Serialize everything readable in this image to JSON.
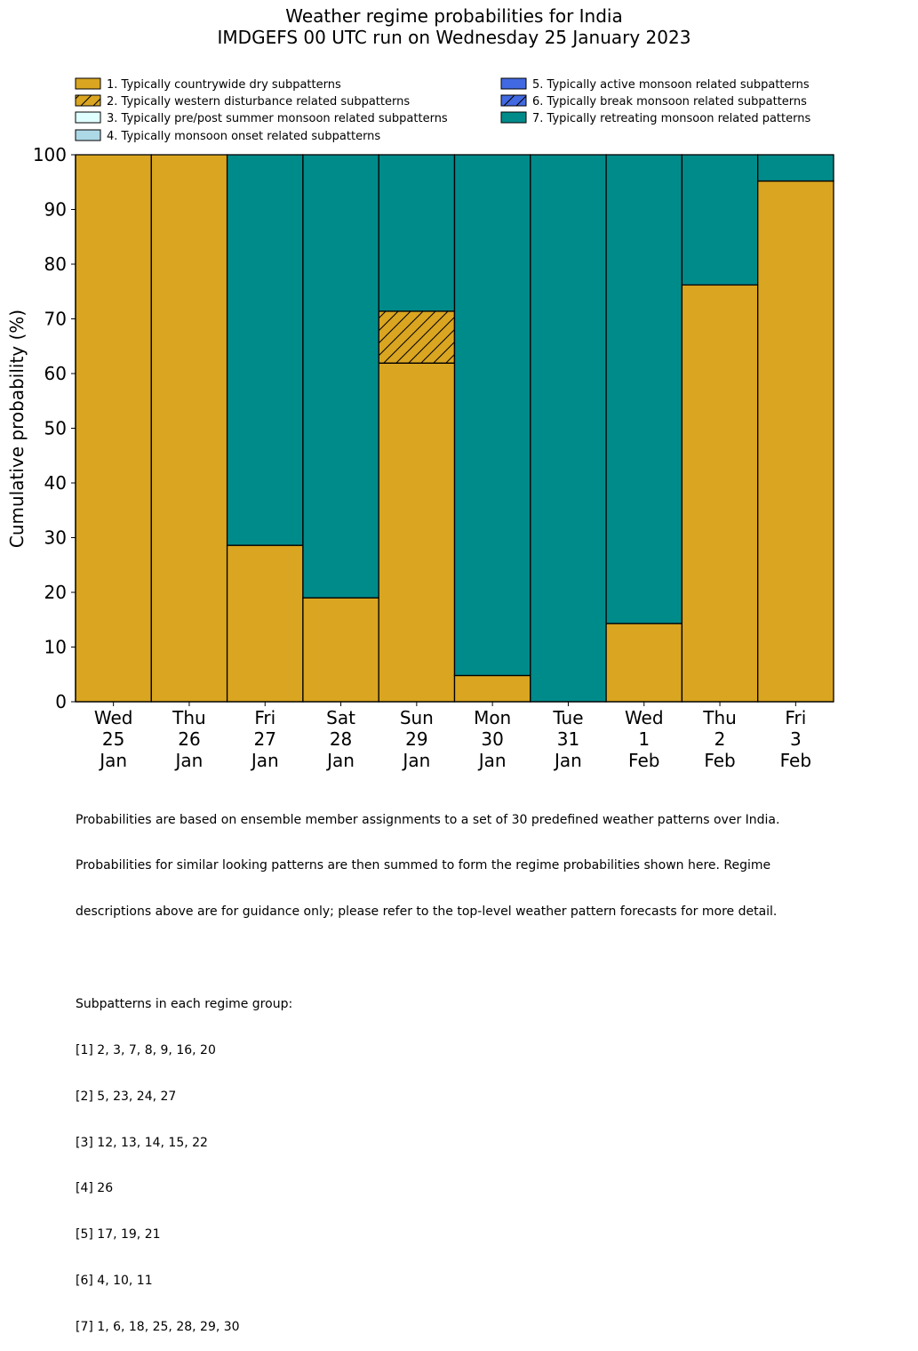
{
  "colors": {
    "dry": "#DAA520",
    "western": "#DAA520",
    "prepost": "#E0FFFF",
    "onset": "#ADD8E6",
    "active": "#4169E1",
    "break": "#4169E1",
    "retreating": "#008B8B"
  },
  "chart_data": {
    "type": "bar",
    "stacked": true,
    "title": "Weather regime probabilities for India",
    "subtitle": "IMDGEFS 00 UTC run on Wednesday 25 January 2023",
    "xlabel": "",
    "ylabel": "Cumulative probability (%)",
    "ylim": [
      0,
      100
    ],
    "yticks": [
      "0",
      "10",
      "20",
      "30",
      "40",
      "50",
      "60",
      "70",
      "80",
      "90",
      "100"
    ],
    "categories": [
      {
        "day": "Wed",
        "date": "25",
        "month": "Jan"
      },
      {
        "day": "Thu",
        "date": "26",
        "month": "Jan"
      },
      {
        "day": "Fri",
        "date": "27",
        "month": "Jan"
      },
      {
        "day": "Sat",
        "date": "28",
        "month": "Jan"
      },
      {
        "day": "Sun",
        "date": "29",
        "month": "Jan"
      },
      {
        "day": "Mon",
        "date": "30",
        "month": "Jan"
      },
      {
        "day": "Tue",
        "date": "31",
        "month": "Jan"
      },
      {
        "day": "Wed",
        "date": "1",
        "month": "Feb"
      },
      {
        "day": "Thu",
        "date": "2",
        "month": "Feb"
      },
      {
        "day": "Fri",
        "date": "3",
        "month": "Feb"
      }
    ],
    "series": [
      {
        "key": "dry",
        "name": "1. Typically countrywide dry subpatterns",
        "hatch": false,
        "values": [
          100,
          100,
          28.6,
          19.0,
          61.9,
          4.8,
          0,
          14.3,
          76.2,
          95.2
        ]
      },
      {
        "key": "western",
        "name": "2. Typically western disturbance related subpatterns",
        "hatch": true,
        "values": [
          0,
          0,
          0,
          0,
          9.5,
          0,
          0,
          0,
          0,
          0
        ]
      },
      {
        "key": "prepost",
        "name": "3. Typically pre/post summer monsoon related subpatterns",
        "hatch": false,
        "values": [
          0,
          0,
          0,
          0,
          0,
          0,
          0,
          0,
          0,
          0
        ]
      },
      {
        "key": "onset",
        "name": "4. Typically monsoon onset related subpatterns",
        "hatch": false,
        "values": [
          0,
          0,
          0,
          0,
          0,
          0,
          0,
          0,
          0,
          0
        ]
      },
      {
        "key": "active",
        "name": "5. Typically active monsoon related subpatterns",
        "hatch": false,
        "values": [
          0,
          0,
          0,
          0,
          0,
          0,
          0,
          0,
          0,
          0
        ]
      },
      {
        "key": "break",
        "name": "6. Typically break monsoon related subpatterns",
        "hatch": true,
        "values": [
          0,
          0,
          0,
          0,
          0,
          0,
          0,
          0,
          0,
          0
        ]
      },
      {
        "key": "retreating",
        "name": "7. Typically retreating monsoon related patterns",
        "hatch": false,
        "values": [
          0,
          0,
          71.4,
          81.0,
          28.6,
          95.2,
          100,
          85.7,
          23.8,
          4.8
        ]
      }
    ],
    "legend_position": "top"
  },
  "footnote": {
    "paragraph": [
      "Probabilities are based on ensemble member assignments to a set of 30 predefined weather patterns over India.",
      "Probabilities for similar looking patterns are then summed to form the regime probabilities shown here. Regime",
      "descriptions above are for guidance only; please refer to the top-level weather pattern forecasts for more detail."
    ],
    "groups_heading": "Subpatterns in each regime group:",
    "groups": [
      "[1] 2, 3, 7, 8, 9, 16, 20",
      "[2] 5, 23, 24, 27",
      "[3] 12, 13, 14, 15, 22",
      "[4] 26",
      "[5] 17, 19, 21",
      "[6] 4, 10, 11",
      "[7] 1, 6, 18, 25, 28, 29, 30"
    ]
  }
}
